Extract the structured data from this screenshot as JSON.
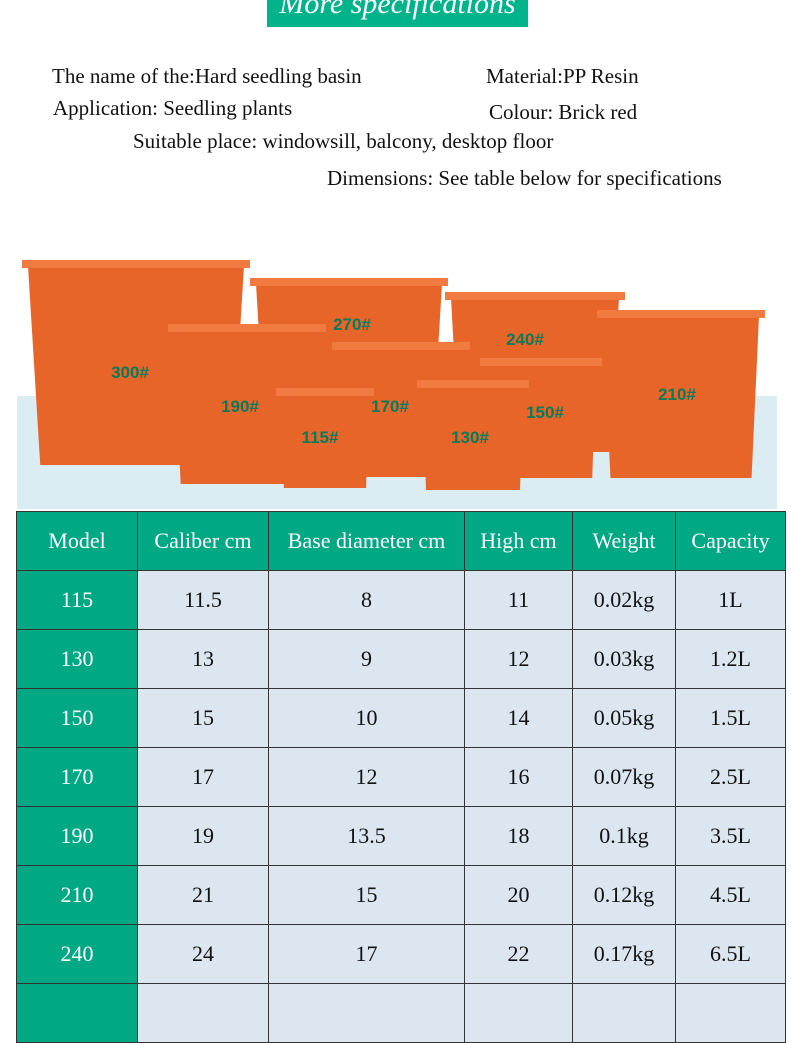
{
  "banner": "More specifications",
  "specs": {
    "name": "The name of the:Hard seedling basin",
    "material": "Material:PP Resin",
    "application": "Application: Seedling plants",
    "colour": "Colour: Brick red",
    "place": "Suitable place: windowsill, balcony, desktop floor",
    "dimensions": "Dimensions: See table below for specifications"
  },
  "pots": [
    "300#",
    "270#",
    "240#",
    "210#",
    "190#",
    "170#",
    "150#",
    "130#",
    "115#"
  ],
  "colors": {
    "accent": "#00a884",
    "pot": "#e8652a",
    "cell": "#dce6f0"
  },
  "table": {
    "headers": [
      "Model",
      "Caliber cm",
      "Base diameter  cm",
      "High cm",
      "Weight",
      "Capacity"
    ],
    "rows": [
      [
        "115",
        "11.5",
        "8",
        "11",
        "0.02kg",
        "1L"
      ],
      [
        "130",
        "13",
        "9",
        "12",
        "0.03kg",
        "1.2L"
      ],
      [
        "150",
        "15",
        "10",
        "14",
        "0.05kg",
        "1.5L"
      ],
      [
        "170",
        "17",
        "12",
        "16",
        "0.07kg",
        "2.5L"
      ],
      [
        "190",
        "19",
        "13.5",
        "18",
        "0.1kg",
        "3.5L"
      ],
      [
        "210",
        "21",
        "15",
        "20",
        "0.12kg",
        "4.5L"
      ],
      [
        "240",
        "24",
        "17",
        "22",
        "0.17kg",
        "6.5L"
      ],
      [
        "",
        "",
        "",
        "",
        "",
        ""
      ]
    ]
  }
}
